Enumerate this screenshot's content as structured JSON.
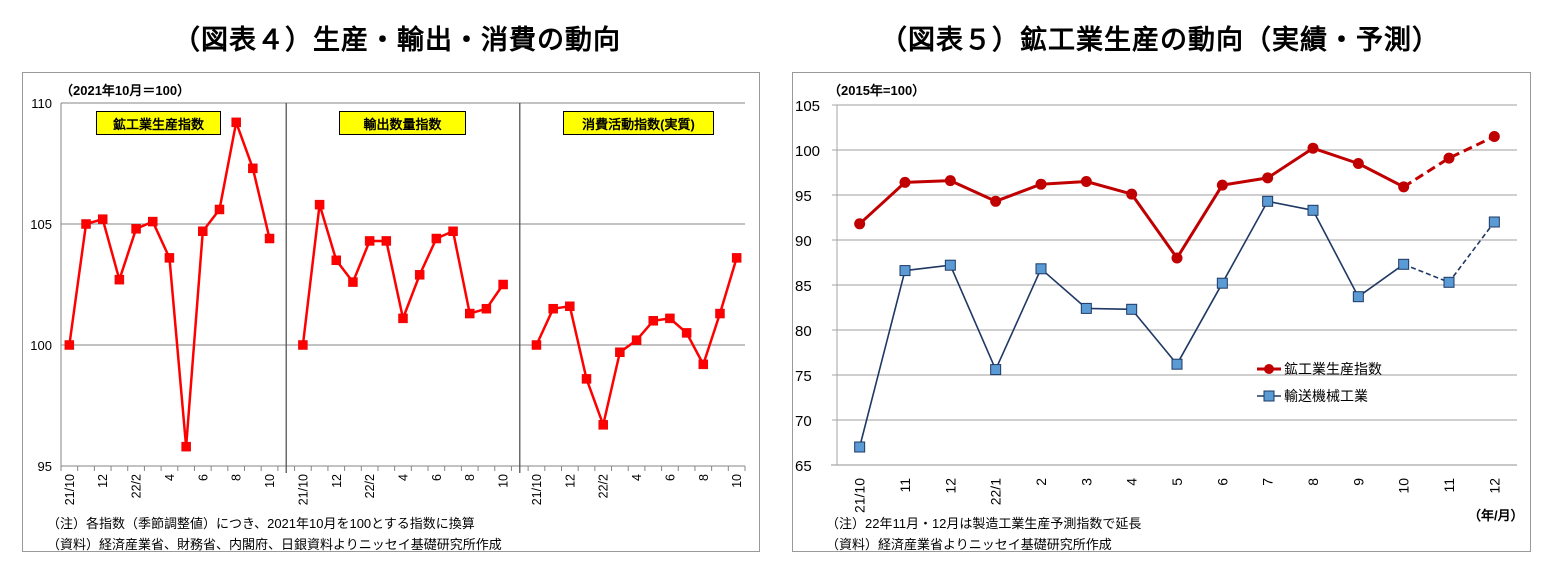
{
  "chart_data": [
    {
      "type": "line",
      "title": "（図表４）生産・輸出・消費の動向",
      "unit_label": "（2021年10月＝100）",
      "ylabel": "",
      "xlabel": "",
      "ylim": [
        95,
        110
      ],
      "yticks": [
        95,
        100,
        105,
        110
      ],
      "grid": true,
      "color": "#FF0000",
      "panels": [
        {
          "label": "鉱工業生産指数",
          "categories": [
            "21/10",
            "11",
            "12",
            "22/1",
            "2",
            "3",
            "4",
            "5",
            "6",
            "7",
            "8",
            "9",
            "10"
          ],
          "tick_labels": [
            "21/10",
            "",
            "12",
            "",
            "22/2",
            "",
            "4",
            "",
            "6",
            "",
            "8",
            "",
            "10"
          ],
          "values": [
            100.0,
            105.0,
            105.2,
            102.7,
            104.8,
            105.1,
            103.6,
            95.8,
            104.7,
            105.6,
            109.2,
            107.3,
            104.4
          ]
        },
        {
          "label": "輸出数量指数",
          "categories": [
            "21/10",
            "11",
            "12",
            "22/1",
            "2",
            "3",
            "4",
            "5",
            "6",
            "7",
            "8",
            "9",
            "10"
          ],
          "tick_labels": [
            "21/10",
            "",
            "12",
            "",
            "22/2",
            "",
            "4",
            "",
            "6",
            "",
            "8",
            "",
            "10"
          ],
          "values": [
            100.0,
            105.8,
            103.5,
            102.6,
            104.3,
            104.3,
            101.1,
            102.9,
            104.4,
            104.7,
            101.3,
            101.5,
            102.5
          ]
        },
        {
          "label": "消費活動指数(実質)",
          "categories": [
            "21/10",
            "11",
            "12",
            "22/1",
            "2",
            "3",
            "4",
            "5",
            "6",
            "7",
            "8",
            "9",
            "10"
          ],
          "tick_labels": [
            "21/10",
            "",
            "12",
            "",
            "22/2",
            "",
            "4",
            "",
            "6",
            "",
            "8",
            "",
            "10"
          ],
          "values": [
            100.0,
            101.5,
            101.6,
            98.6,
            96.7,
            99.7,
            100.2,
            101.0,
            101.1,
            100.5,
            99.2,
            101.3,
            103.6
          ]
        }
      ],
      "notes": [
        "（注）各指数（季節調整値）につき、2021年10月を100とする指数に換算",
        "（資料）経済産業省、財務省、内閣府、日銀資料よりニッセイ基礎研究所作成"
      ]
    },
    {
      "type": "line",
      "title": "（図表５）鉱工業生産の動向（実績・予測）",
      "unit_label": "（2015年=100）",
      "xlabel": "（年/月）",
      "ylabel": "",
      "ylim": [
        65,
        105
      ],
      "yticks": [
        65,
        70,
        75,
        80,
        85,
        90,
        95,
        100,
        105
      ],
      "grid": true,
      "legend_position": "inside-right-middle",
      "categories": [
        "21/10",
        "11",
        "12",
        "22/1",
        "2",
        "3",
        "4",
        "5",
        "6",
        "7",
        "8",
        "9",
        "10",
        "11",
        "12"
      ],
      "forecast_from_index": 12,
      "series": [
        {
          "name": "鉱工業生産指数",
          "color": "#C00000",
          "marker": "circle",
          "values": [
            91.8,
            96.4,
            96.6,
            94.3,
            96.2,
            96.5,
            95.1,
            88.0,
            96.1,
            96.9,
            100.2,
            98.5,
            95.9,
            99.1,
            101.5
          ]
        },
        {
          "name": "輸送機械工業",
          "color": "#1F3864",
          "marker_fill": "#5B9BD5",
          "marker": "square",
          "values": [
            67.0,
            86.6,
            87.2,
            75.6,
            86.8,
            82.4,
            82.3,
            76.2,
            85.2,
            94.3,
            93.3,
            83.7,
            87.3,
            85.3,
            92.0
          ]
        }
      ],
      "notes": [
        "（注）22年11月・12月は製造工業生産予測指数で延長",
        "（資料）経済産業省よりニッセイ基礎研究所作成"
      ]
    }
  ]
}
